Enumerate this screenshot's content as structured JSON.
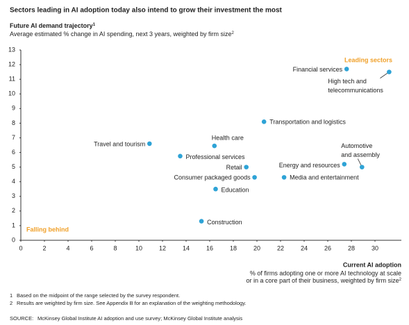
{
  "chart_data": {
    "type": "scatter",
    "title": "Sectors leading in AI adoption today also intend to grow their investment the most",
    "y_label": "Future AI demand trajectory",
    "y_label_note": "1",
    "y_description": "Average estimated % change in AI spending, next 3 years, weighted by firm size",
    "y_description_note": "2",
    "x_label": "Current AI adoption",
    "x_description": [
      "% of firms adopting one or more AI technology at scale",
      "or in a core part of their business, weighted by firm size"
    ],
    "x_description_note": "2",
    "annotations": [
      "Leading sectors",
      "Falling behind"
    ],
    "color": "#2ea3d6",
    "annotation_color": "#f0a029",
    "x": [
      27.6,
      31.2,
      20.6,
      16.4,
      10.9,
      13.5,
      19.1,
      27.4,
      28.9,
      19.8,
      22.3,
      16.5,
      15.3
    ],
    "values": [
      11.7,
      11.5,
      8.1,
      6.45,
      6.6,
      5.75,
      5.0,
      5.2,
      5.0,
      4.3,
      4.3,
      3.5,
      1.3
    ],
    "labels": [
      "Financial services",
      [
        "High tech and",
        "telecommunications"
      ],
      "Transportation and logistics",
      "Health care",
      "Travel and tourism",
      "Professional services",
      "Retail",
      "Energy and resources",
      [
        "Automotive",
        "and assembly"
      ],
      "Consumer packaged goods",
      "Media and entertainment",
      "Education",
      "Construction"
    ],
    "xlim": [
      0,
      32
    ],
    "xticks": [
      0,
      2,
      4,
      6,
      8,
      10,
      12,
      14,
      16,
      18,
      20,
      22,
      24,
      26,
      28,
      30
    ],
    "ylim": [
      0,
      13
    ],
    "yticks": [
      0,
      1,
      2,
      3,
      4,
      5,
      6,
      7,
      8,
      9,
      10,
      11,
      12,
      13
    ],
    "grid": false,
    "footnotes": [
      [
        "1",
        "Based on the midpoint of the range selected by the survey respondent."
      ],
      [
        "2",
        "Results are weighted by firm size. See Appendix B for an explanation of the weighting methodology."
      ]
    ],
    "source": [
      "SOURCE:",
      "McKinsey Global Institute AI adoption and use survey; McKinsey Global Institute analysis"
    ]
  }
}
